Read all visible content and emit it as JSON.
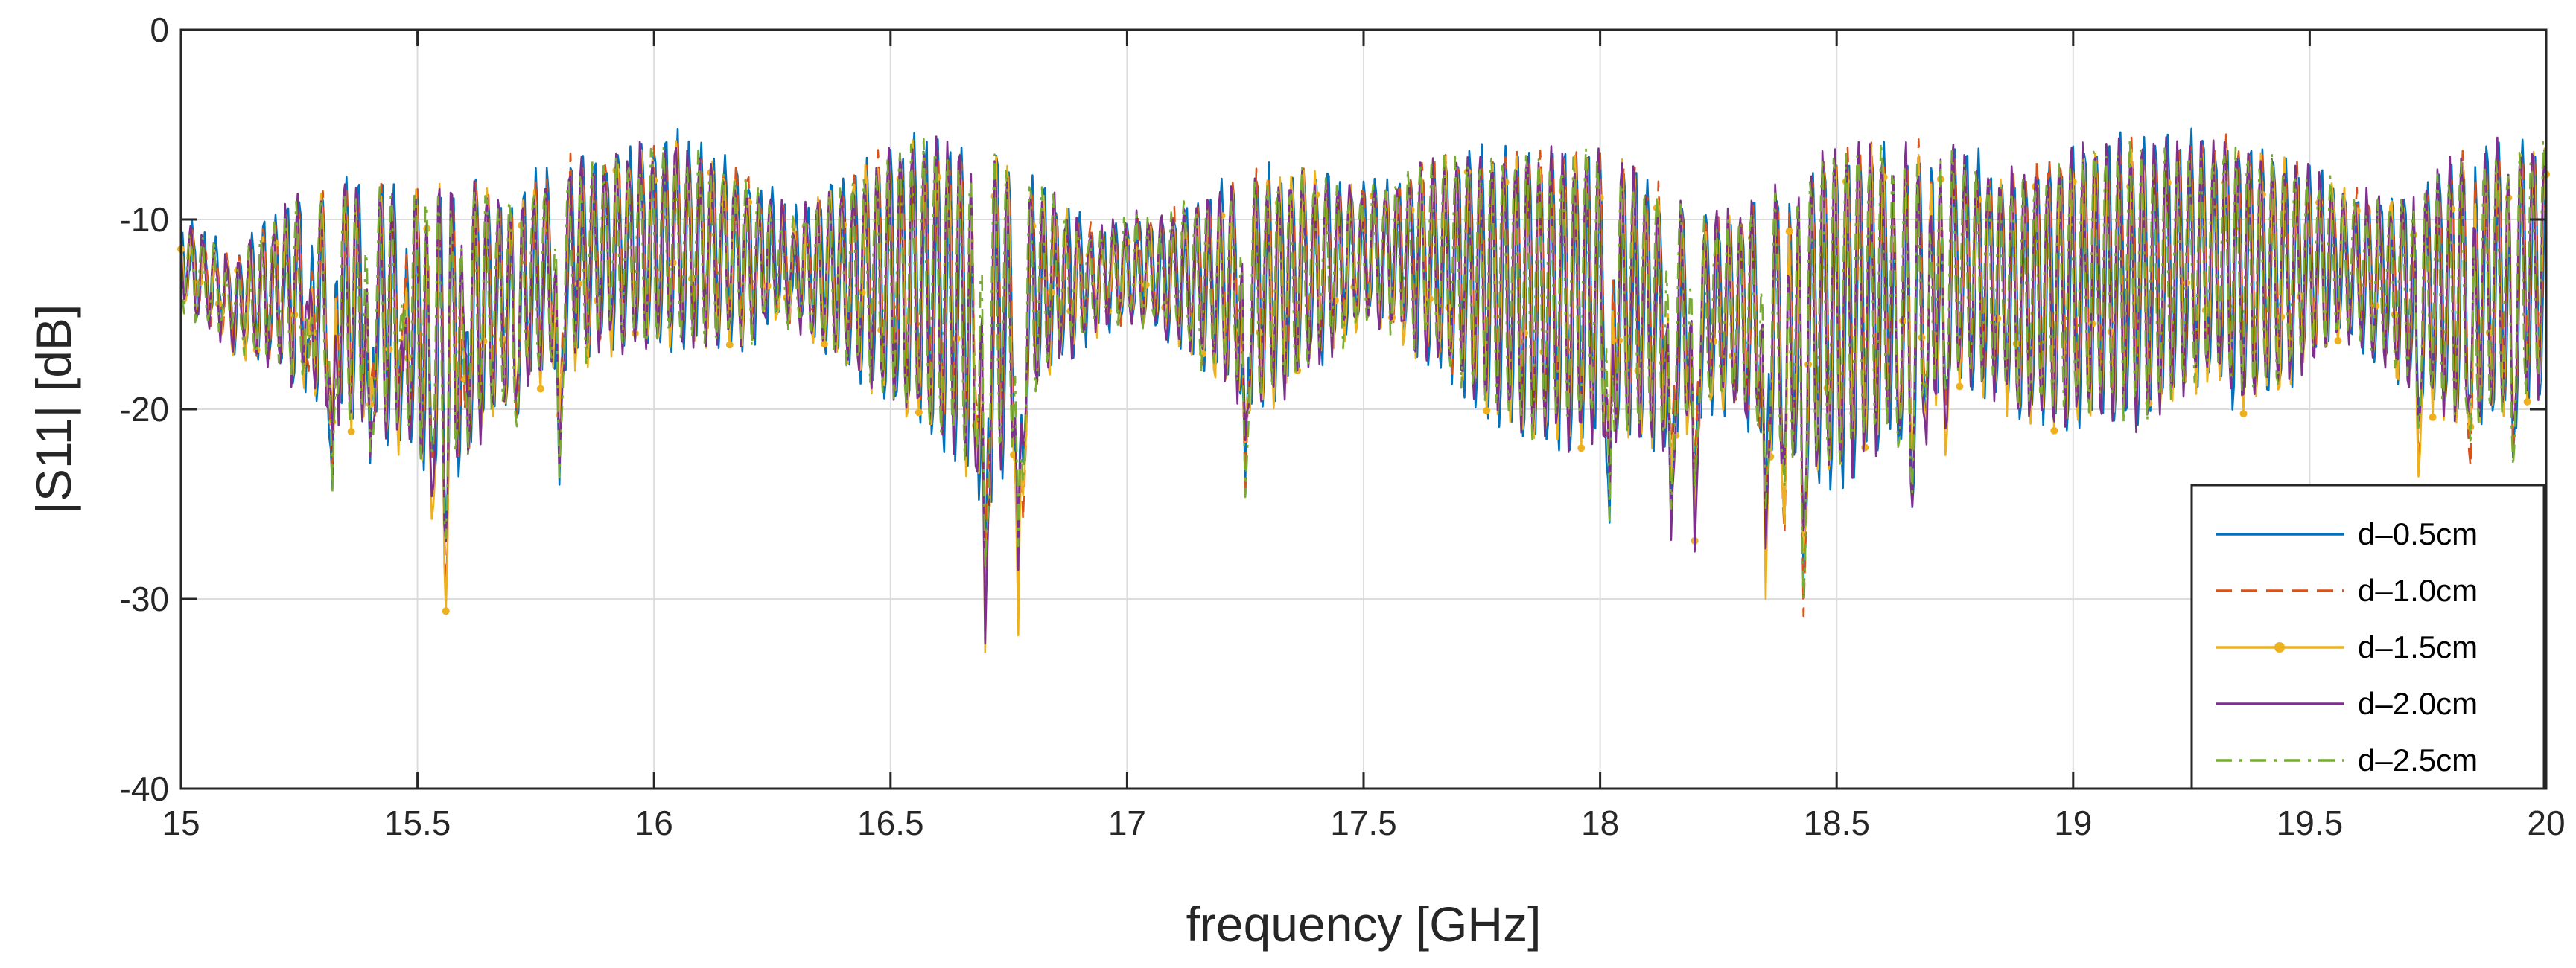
{
  "chart_data": {
    "type": "line",
    "title": "",
    "xlabel": "frequency [GHz]",
    "ylabel": "|S11| [dB]",
    "xlim": [
      15,
      20
    ],
    "ylim": [
      -40,
      0
    ],
    "xticks": [
      15,
      15.5,
      16,
      16.5,
      17,
      17.5,
      18,
      18.5,
      19,
      19.5,
      20
    ],
    "xtick_labels": [
      "15",
      "15.5",
      "16",
      "16.5",
      "17",
      "17.5",
      "18",
      "18.5",
      "19",
      "19.5",
      "20"
    ],
    "yticks": [
      0,
      -10,
      -20,
      -30,
      -40
    ],
    "ytick_labels": [
      "0",
      "-10",
      "-20",
      "-30",
      "-40"
    ],
    "grid": true,
    "legend_position": "bottom-right",
    "envelope": {
      "x": [
        15.0,
        15.05,
        15.1,
        15.15,
        15.2,
        15.25,
        15.3,
        15.35,
        15.4,
        15.45,
        15.5,
        15.55,
        15.6,
        15.65,
        15.7,
        15.75,
        15.8,
        15.85,
        15.9,
        15.95,
        16.0,
        16.05,
        16.1,
        16.15,
        16.2,
        16.25,
        16.3,
        16.35,
        16.4,
        16.45,
        16.5,
        16.55,
        16.6,
        16.65,
        16.7,
        16.75,
        16.8,
        16.85,
        16.9,
        16.95,
        17.0,
        17.05,
        17.1,
        17.15,
        17.2,
        17.25,
        17.3,
        17.35,
        17.4,
        17.45,
        17.5,
        17.55,
        17.6,
        17.65,
        17.7,
        17.75,
        17.8,
        17.85,
        17.9,
        17.95,
        18.0,
        18.05,
        18.1,
        18.15,
        18.2,
        18.25,
        18.3,
        18.35,
        18.4,
        18.45,
        18.5,
        18.55,
        18.6,
        18.65,
        18.7,
        18.75,
        18.8,
        18.85,
        18.9,
        18.95,
        19.0,
        19.05,
        19.1,
        19.15,
        19.2,
        19.25,
        19.3,
        19.35,
        19.4,
        19.45,
        19.5,
        19.55,
        19.6,
        19.65,
        19.7,
        19.75,
        19.8,
        19.85,
        19.9,
        19.95,
        20.0
      ],
      "peak": [
        -10,
        -11,
        -12,
        -11,
        -10,
        -9,
        -8.5,
        -8,
        -8,
        -8.5,
        -8,
        -8,
        -7.5,
        -8.5,
        -9,
        -8,
        -7,
        -7,
        -7,
        -6.5,
        -6,
        -6,
        -6.5,
        -7,
        -8,
        -9,
        -10,
        -9,
        -8,
        -7,
        -6.5,
        -6,
        -6,
        -6,
        -6,
        -7,
        -8,
        -9,
        -10,
        -10.5,
        -10,
        -10,
        -9.5,
        -9,
        -8.5,
        -8,
        -7.5,
        -7.5,
        -7.5,
        -8,
        -8.5,
        -8,
        -7.5,
        -7,
        -6.5,
        -6.5,
        -6.5,
        -6.5,
        -6.5,
        -6.5,
        -6.5,
        -7,
        -8,
        -9,
        -10,
        -10,
        -9.5,
        -9,
        -8,
        -7,
        -6.5,
        -6,
        -6,
        -6,
        -6,
        -6.5,
        -7,
        -7.5,
        -7.5,
        -7,
        -6.5,
        -6,
        -6,
        -6,
        -6,
        -6,
        -6,
        -6,
        -6.5,
        -7,
        -7.5,
        -8,
        -8.5,
        -9,
        -8.5,
        -8,
        -7,
        -6.5,
        -6,
        -6,
        -6
      ],
      "trough": [
        -14,
        -15,
        -16,
        -17,
        -17,
        -18,
        -19,
        -20,
        -20,
        -21,
        -22,
        -23,
        -22,
        -20,
        -19,
        -18,
        -17,
        -17,
        -16,
        -16,
        -16,
        -16,
        -16,
        -16,
        -16,
        -15,
        -15,
        -16,
        -17,
        -18,
        -19,
        -20,
        -21,
        -22,
        -24,
        -22,
        -19,
        -17,
        -16,
        -15,
        -15,
        -15,
        -16,
        -17,
        -18,
        -19,
        -19,
        -18,
        -17,
        -16,
        -15,
        -15,
        -16,
        -17,
        -18,
        -19,
        -20,
        -21,
        -21,
        -21,
        -21,
        -21,
        -21,
        -21,
        -20,
        -19,
        -20,
        -21,
        -22,
        -23,
        -23,
        -22,
        -21,
        -20,
        -19,
        -18,
        -18,
        -19,
        -20,
        -20,
        -20,
        -20,
        -20,
        -20,
        -19,
        -18,
        -18,
        -19,
        -19,
        -18,
        -17,
        -16,
        -16,
        -17,
        -18,
        -19,
        -20,
        -20,
        -20,
        -19,
        -18
      ]
    },
    "dips": {
      "x": [
        15.27,
        15.32,
        15.4,
        15.47,
        15.53,
        15.56,
        15.6,
        15.71,
        15.8,
        16.68,
        16.7,
        16.77,
        16.78,
        17.25,
        18.02,
        18.15,
        18.2,
        18.35,
        18.39,
        18.43,
        18.63,
        18.66,
        18.69,
        18.73,
        19.73,
        19.84,
        19.93
      ],
      "y": [
        -18,
        -24.5,
        -23,
        -18,
        -26,
        -31,
        -20,
        -21,
        -24,
        -23,
        -33.5,
        -32,
        -26,
        -25,
        -26,
        -27,
        -28,
        -30,
        -27,
        -31,
        -22,
        -25.5,
        -22,
        -22.5,
        -24,
        -23,
        -23
      ]
    },
    "series": [
      {
        "name": "d=0.5cm",
        "color": "#0072BD",
        "style": "solid",
        "marker": "none",
        "phase": 0.0,
        "offset": 0.0,
        "depth": 1.05
      },
      {
        "name": "d=1.0cm",
        "color": "#D95319",
        "style": "dashed",
        "marker": "none",
        "phase": 0.35,
        "offset": 0.3,
        "depth": 0.95
      },
      {
        "name": "d=1.5cm",
        "color": "#EDB120",
        "style": "solid",
        "marker": "dot",
        "phase": 0.7,
        "offset": 0.5,
        "depth": 1.0
      },
      {
        "name": "d=2.0cm",
        "color": "#7E2F8E",
        "style": "solid",
        "marker": "none",
        "phase": 1.05,
        "offset": 0.2,
        "depth": 1.02
      },
      {
        "name": "d=2.5cm",
        "color": "#77AC30",
        "style": "dashdot",
        "marker": "none",
        "phase": 1.4,
        "offset": 0.4,
        "depth": 0.97
      }
    ],
    "legend_label_display": [
      "d–0.5cm",
      "d–1.0cm",
      "d–1.5cm",
      "d–2.0cm",
      "d–2.5cm"
    ]
  }
}
